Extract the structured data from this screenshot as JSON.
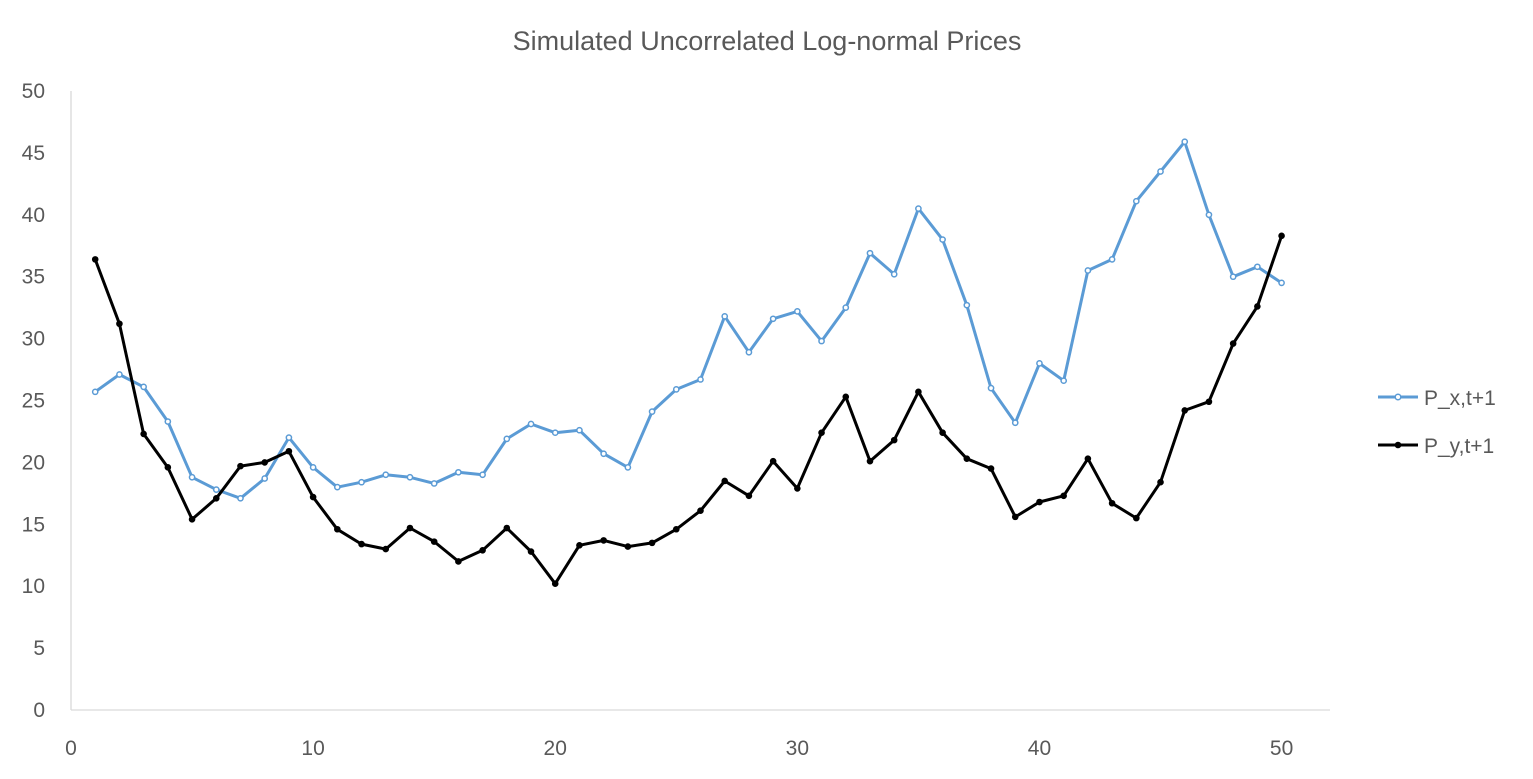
{
  "chart_data": {
    "type": "line",
    "title": "Simulated Uncorrelated Log-normal Prices",
    "xlabel": "",
    "ylabel": "",
    "xlim": [
      0,
      52
    ],
    "ylim": [
      0,
      50
    ],
    "x_ticks": [
      0,
      10,
      20,
      30,
      40,
      50
    ],
    "y_ticks": [
      0,
      5,
      10,
      15,
      20,
      25,
      30,
      35,
      40,
      45,
      50
    ],
    "grid": false,
    "legend_position": "right",
    "x": [
      1,
      2,
      3,
      4,
      5,
      6,
      7,
      8,
      9,
      10,
      11,
      12,
      13,
      14,
      15,
      16,
      17,
      18,
      19,
      20,
      21,
      22,
      23,
      24,
      25,
      26,
      27,
      28,
      29,
      30,
      31,
      32,
      33,
      34,
      35,
      36,
      37,
      38,
      39,
      40,
      41,
      42,
      43,
      44,
      45,
      46,
      47,
      48,
      49,
      50
    ],
    "series": [
      {
        "name": "P_x,t+1",
        "color": "#5b9bd5",
        "marker": "hollow-circle",
        "values": [
          25.7,
          27.1,
          26.1,
          23.3,
          18.8,
          17.8,
          17.1,
          18.7,
          22.0,
          19.6,
          18.0,
          18.4,
          19.0,
          18.8,
          18.3,
          19.2,
          19.0,
          21.9,
          23.1,
          22.4,
          22.6,
          20.7,
          19.6,
          24.1,
          25.9,
          26.7,
          31.8,
          28.9,
          31.6,
          32.2,
          29.8,
          32.5,
          36.9,
          35.2,
          40.5,
          38.0,
          32.7,
          26.0,
          23.2,
          28.0,
          26.6,
          35.5,
          36.4,
          41.1,
          43.5,
          45.9,
          40.0,
          35.0,
          35.8,
          34.5
        ]
      },
      {
        "name": "P_y,t+1",
        "color": "#000000",
        "marker": "filled-circle",
        "values": [
          36.4,
          31.2,
          22.3,
          19.6,
          15.4,
          17.1,
          19.7,
          20.0,
          20.9,
          17.2,
          14.6,
          13.4,
          13.0,
          14.7,
          13.6,
          12.0,
          12.9,
          14.7,
          12.8,
          10.2,
          13.3,
          13.7,
          13.2,
          13.5,
          14.6,
          16.1,
          18.5,
          17.3,
          20.1,
          17.9,
          22.4,
          25.3,
          20.1,
          21.8,
          25.7,
          22.4,
          20.3,
          19.5,
          15.6,
          16.8,
          17.3,
          20.3,
          16.7,
          15.5,
          18.4,
          24.2,
          24.9,
          29.6,
          32.6,
          38.3
        ]
      }
    ]
  }
}
